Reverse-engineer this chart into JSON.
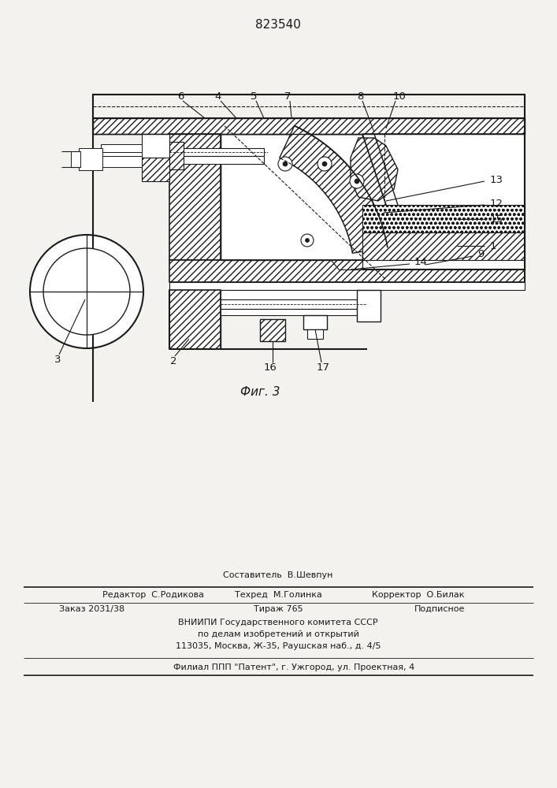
{
  "patent_number": "823540",
  "figure_caption": "Фиг. 3",
  "bg_color": "#f4f2ee",
  "line_color": "#1a1a1a",
  "footer_editor": "Редактор  С.Родикова",
  "footer_sostavitel": "Составитель  В.Шевпун",
  "footer_tehred": "Техред  М.Голинка",
  "footer_korrektor": "Корректор  О.Билак",
  "footer_zakaz": "Заказ 2031/38",
  "footer_tirazh": "Тираж 765",
  "footer_podpisnoe": "Подписное",
  "footer_vniip1": "ВНИИПИ Государственного комитета СССР",
  "footer_vniip2": "по делам изобретений и открытий",
  "footer_vniip3": "113035, Москва, Ж-35, Раушская наб., д. 4/5",
  "footer_filial": "Филиал ППП \"Патент\", г. Ужгород, ул. Проектная, 4"
}
